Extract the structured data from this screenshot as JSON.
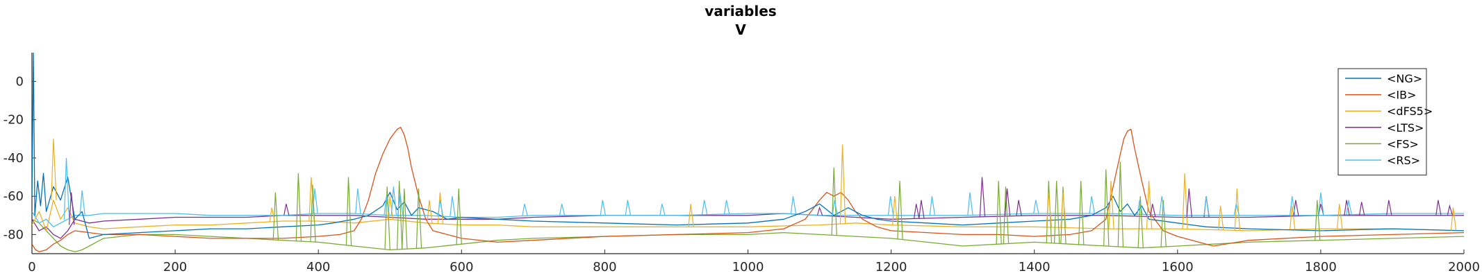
{
  "chart_data": {
    "type": "line",
    "title": "variables",
    "subtitle": "V",
    "xlabel": "",
    "ylabel": "",
    "xlim": [
      0,
      2000
    ],
    "ylim": [
      -90,
      15
    ],
    "x_ticks": [
      0,
      200,
      400,
      600,
      800,
      1000,
      1200,
      1400,
      1600,
      1800,
      2000
    ],
    "y_ticks": [
      0,
      -20,
      -40,
      -60,
      -80
    ],
    "grid": false,
    "legend_position": "top-right",
    "series": [
      {
        "name": "<NG>",
        "color": "#0072BD",
        "x": [
          0,
          2,
          4,
          8,
          12,
          16,
          20,
          30,
          40,
          50,
          60,
          70,
          80,
          100,
          150,
          200,
          250,
          300,
          350,
          400,
          420,
          450,
          470,
          490,
          500,
          510,
          520,
          530,
          540,
          560,
          580,
          600,
          650,
          700,
          800,
          900,
          1000,
          1050,
          1080,
          1100,
          1120,
          1140,
          1160,
          1180,
          1200,
          1250,
          1300,
          1350,
          1400,
          1450,
          1480,
          1500,
          1510,
          1520,
          1530,
          1540,
          1550,
          1560,
          1580,
          1600,
          1620,
          1640,
          1700,
          1800,
          1900,
          2000
        ],
        "y": [
          -60,
          15,
          -70,
          -52,
          -65,
          -48,
          -68,
          -55,
          -62,
          -50,
          -72,
          -68,
          -82,
          -80,
          -79,
          -78,
          -77,
          -77,
          -76,
          -75,
          -74,
          -72,
          -70,
          -65,
          -58,
          -67,
          -63,
          -70,
          -66,
          -68,
          -72,
          -71,
          -72,
          -73,
          -74,
          -75,
          -74,
          -72,
          -68,
          -64,
          -70,
          -66,
          -70,
          -72,
          -73,
          -74,
          -75,
          -74,
          -73,
          -72,
          -70,
          -66,
          -60,
          -68,
          -64,
          -70,
          -65,
          -72,
          -73,
          -74,
          -75,
          -76,
          -77,
          -78,
          -77,
          -78
        ]
      },
      {
        "name": "<IB>",
        "color": "#D95319",
        "x": [
          0,
          5,
          10,
          20,
          30,
          40,
          50,
          60,
          80,
          100,
          150,
          200,
          250,
          300,
          350,
          400,
          430,
          450,
          460,
          470,
          480,
          490,
          500,
          510,
          515,
          520,
          525,
          530,
          540,
          550,
          560,
          580,
          600,
          650,
          700,
          800,
          900,
          1000,
          1050,
          1080,
          1100,
          1110,
          1120,
          1130,
          1140,
          1150,
          1160,
          1180,
          1200,
          1250,
          1300,
          1350,
          1400,
          1450,
          1480,
          1500,
          1510,
          1520,
          1525,
          1530,
          1535,
          1540,
          1550,
          1560,
          1580,
          1600,
          1650,
          1700,
          1800,
          1900,
          2000
        ],
        "y": [
          -85,
          -88,
          -89,
          -88,
          -85,
          -83,
          -80,
          -78,
          -79,
          -80,
          -80,
          -81,
          -82,
          -82,
          -82,
          -81,
          -80,
          -78,
          -72,
          -62,
          -48,
          -38,
          -30,
          -25,
          -24,
          -28,
          -35,
          -45,
          -60,
          -72,
          -78,
          -80,
          -82,
          -84,
          -83,
          -81,
          -80,
          -79,
          -77,
          -72,
          -62,
          -58,
          -60,
          -58,
          -62,
          -68,
          -72,
          -76,
          -78,
          -79,
          -80,
          -80,
          -81,
          -80,
          -78,
          -72,
          -55,
          -38,
          -30,
          -26,
          -25,
          -35,
          -52,
          -68,
          -78,
          -81,
          -86,
          -83,
          -81,
          -80,
          -79
        ]
      },
      {
        "name": "<dFS5>",
        "color": "#EDB120",
        "x": [
          0,
          10,
          20,
          30,
          40,
          50,
          60,
          80,
          100,
          150,
          200,
          250,
          300,
          350,
          400,
          450,
          500,
          550,
          600,
          650,
          700,
          800,
          900,
          1000,
          1100,
          1150,
          1200,
          1300,
          1400,
          1500,
          1600,
          1700,
          1800,
          1900,
          2000
        ],
        "y": [
          -75,
          -68,
          -78,
          -62,
          -72,
          -66,
          -74,
          -76,
          -77,
          -76,
          -75,
          -75,
          -74,
          -73,
          -73,
          -74,
          -72,
          -74,
          -75,
          -75,
          -76,
          -76,
          -76,
          -76,
          -75,
          -74,
          -75,
          -76,
          -76,
          -77,
          -77,
          -78,
          -77,
          -77,
          -78
        ]
      },
      {
        "name": "<LTS>",
        "color": "#7E2F8E",
        "x": [
          0,
          10,
          20,
          30,
          40,
          50,
          60,
          80,
          100,
          150,
          200,
          250,
          300,
          350,
          400,
          450,
          500,
          550,
          600,
          650,
          700,
          800,
          900,
          1000,
          1050,
          1100,
          1150,
          1200,
          1300,
          1400,
          1500,
          1600,
          1700,
          1800,
          1900,
          2000
        ],
        "y": [
          -72,
          -78,
          -76,
          -80,
          -82,
          -78,
          -72,
          -74,
          -73,
          -72,
          -71,
          -71,
          -71,
          -70,
          -70,
          -70,
          -71,
          -72,
          -72,
          -72,
          -71,
          -70,
          -70,
          -70,
          -69,
          -70,
          -71,
          -72,
          -71,
          -70,
          -70,
          -71,
          -71,
          -70,
          -70,
          -70
        ]
      },
      {
        "name": "<FS>",
        "color": "#77AC30",
        "x": [
          0,
          10,
          20,
          30,
          40,
          50,
          60,
          70,
          80,
          90,
          100,
          150,
          200,
          250,
          300,
          350,
          400,
          450,
          500,
          550,
          600,
          650,
          700,
          800,
          900,
          1000,
          1050,
          1100,
          1150,
          1200,
          1250,
          1300,
          1350,
          1400,
          1450,
          1500,
          1550,
          1600,
          1650,
          1700,
          1800,
          1900,
          2000
        ],
        "y": [
          -72,
          -74,
          -78,
          -82,
          -86,
          -88,
          -89,
          -88,
          -86,
          -84,
          -82,
          -80,
          -80,
          -81,
          -82,
          -83,
          -84,
          -86,
          -88,
          -87,
          -85,
          -83,
          -82,
          -81,
          -80,
          -80,
          -79,
          -80,
          -81,
          -82,
          -84,
          -86,
          -85,
          -84,
          -85,
          -86,
          -87,
          -86,
          -85,
          -84,
          -83,
          -82,
          -81
        ]
      },
      {
        "name": "<RS>",
        "color": "#4DBEEE",
        "x": [
          0,
          10,
          20,
          30,
          40,
          50,
          60,
          80,
          100,
          150,
          200,
          250,
          300,
          350,
          400,
          450,
          500,
          550,
          600,
          650,
          700,
          800,
          900,
          1000,
          1050,
          1100,
          1150,
          1200,
          1300,
          1400,
          1500,
          1600,
          1700,
          1800,
          1900,
          2000
        ],
        "y": [
          -68,
          -74,
          -72,
          -76,
          -74,
          -72,
          -70,
          -70,
          -69,
          -69,
          -69,
          -70,
          -70,
          -70,
          -69,
          -69,
          -70,
          -70,
          -71,
          -71,
          -70,
          -70,
          -70,
          -69,
          -69,
          -70,
          -70,
          -70,
          -70,
          -69,
          -69,
          -70,
          -70,
          -70,
          -69,
          -69
        ]
      }
    ],
    "spikes": [
      {
        "series": "<FS>",
        "x": [
          340,
          372,
          392,
          442,
          496,
          513,
          520,
          540,
          596,
          1120,
          1212,
          1350,
          1360,
          1420,
          1431,
          1440,
          1465,
          1500,
          1520,
          1548,
          1580,
          1795
        ],
        "y": [
          -58,
          -48,
          -54,
          -50,
          -55,
          -52,
          -56,
          -56,
          -56,
          -45,
          -52,
          -52,
          -55,
          -52,
          -52,
          -55,
          -52,
          -46,
          -42,
          -60,
          -62,
          -62
        ]
      },
      {
        "series": "<dFS5>",
        "x": [
          30,
          335,
          390,
          500,
          555,
          570,
          920,
          1132,
          1205,
          1420,
          1440,
          1507,
          1560,
          1610,
          1660,
          1683,
          1760,
          1826,
          1985
        ],
        "y": [
          -30,
          -66,
          -50,
          -60,
          -62,
          -58,
          -64,
          -33,
          -60,
          -58,
          -58,
          -52,
          -52,
          -48,
          -65,
          -56,
          -65,
          -64,
          -66
        ]
      },
      {
        "series": "<LTS>",
        "x": [
          55,
          355,
          1100,
          1235,
          1242,
          1327,
          1362,
          1378,
          1565,
          1616,
          1640,
          1765,
          1800,
          1836,
          1857,
          1895,
          1964,
          1980
        ],
        "y": [
          -58,
          -64,
          -66,
          -64,
          -62,
          -50,
          -56,
          -62,
          -64,
          -56,
          -60,
          -62,
          -64,
          -62,
          -63,
          -62,
          -62,
          -65
        ]
      },
      {
        "series": "<RS>",
        "x": [
          48,
          70,
          395,
          455,
          495,
          505,
          514,
          570,
          587,
          688,
          740,
          797,
          832,
          880,
          939,
          970,
          1063,
          1121,
          1199,
          1257,
          1310,
          1402,
          1480,
          1547,
          1578,
          1640,
          1682,
          1760,
          1800,
          1839
        ],
        "y": [
          -40,
          -57,
          -56,
          -56,
          -60,
          -55,
          -58,
          -62,
          -60,
          -64,
          -64,
          -62,
          -62,
          -64,
          -62,
          -62,
          -60,
          -62,
          -60,
          -60,
          -58,
          -62,
          -60,
          -62,
          -60,
          -60,
          -64,
          -60,
          -58,
          -62
        ]
      }
    ]
  }
}
